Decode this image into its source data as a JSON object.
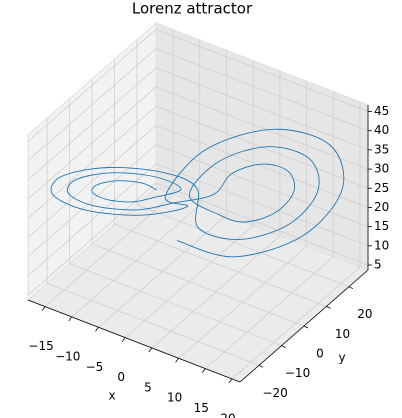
{
  "chart_data": {
    "type": "line3d",
    "title": "Lorenz attractor",
    "xlabel": "x",
    "ylabel": "y",
    "color": "#1f77b4",
    "x": [
      -4.5,
      -5.7,
      -8.5,
      -11.3,
      -12.5,
      -11.3,
      -8.5,
      -5.7,
      -1.5,
      -3.5,
      -8.5,
      -13.5,
      -15.5,
      -13.5,
      -8.5,
      -3.5,
      3.5,
      5.0,
      8.5,
      12.0,
      13.5,
      12.0,
      8.5,
      5.0,
      0.5,
      2.8,
      8.5,
      14.2,
      16.5,
      14.2,
      8.5,
      2.8,
      0.5,
      -2.1,
      -8.5,
      -14.9,
      -17.5,
      -14.9,
      -8.5,
      -2.1,
      -2.5,
      0.7,
      8.5,
      16.3,
      19.5,
      16.3,
      8.5,
      0.7
    ],
    "y": [
      -3.7,
      -7.4,
      -11.7,
      -14.2,
      -13.3,
      -9.6,
      -5.3,
      -2.8,
      -0.1,
      -6.5,
      -14.1,
      -18.4,
      -16.9,
      -10.5,
      -2.9,
      1.4,
      2.5,
      7.1,
      12.5,
      15.6,
      14.5,
      9.9,
      4.5,
      1.4,
      -1.1,
      6.2,
      14.9,
      19.8,
      18.1,
      10.8,
      2.1,
      -2.8,
      2.3,
      -6.0,
      -15.7,
      -21.2,
      -19.3,
      -11.0,
      -1.3,
      4.2,
      -4.7,
      5.4,
      17.3,
      24.1,
      21.7,
      11.6,
      -0.3,
      -7.1
    ],
    "z": [
      27,
      30.1,
      31.4,
      30.1,
      27,
      23.9,
      22.6,
      23.9,
      27,
      32.4,
      34.7,
      32.4,
      27,
      21.6,
      19.3,
      21.6,
      27,
      30.9,
      32.5,
      30.9,
      27,
      23.1,
      21.5,
      23.1,
      27,
      33.2,
      35.8,
      33.2,
      27,
      20.8,
      18.2,
      20.8,
      27,
      34,
      36.9,
      34,
      27,
      20,
      17.1,
      20,
      27,
      35.6,
      39.1,
      35.6,
      27,
      18.4,
      14.9,
      18.4
    ],
    "xlim": [
      -18.2,
      21.5
    ],
    "ylim": [
      -28.5,
      28.5
    ],
    "zlim": [
      3.7,
      46.7
    ],
    "xticks": [
      {
        "value": -15,
        "label": "−15"
      },
      {
        "value": -10,
        "label": "−10"
      },
      {
        "value": -5,
        "label": "−5"
      },
      0,
      5,
      10,
      15,
      20
    ],
    "yticks": [
      {
        "value": -20,
        "label": "−20"
      },
      {
        "value": -10,
        "label": "−10"
      },
      0,
      10,
      20
    ],
    "zticks": [
      5,
      10,
      15,
      20,
      25,
      30,
      35,
      40,
      45
    ],
    "grid": true
  }
}
